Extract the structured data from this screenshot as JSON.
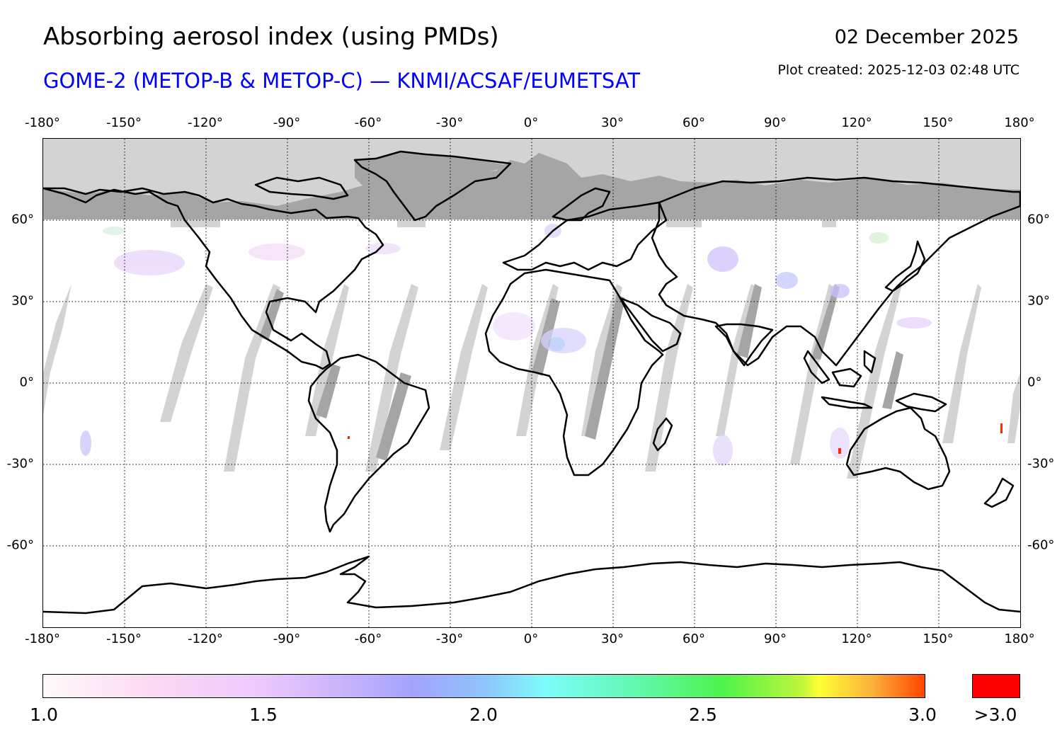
{
  "header": {
    "title": "Absorbing aerosol index (using PMDs)",
    "subtitle": "GOME-2 (METOP-B & METOP-C) — KNMI/ACSAF/EUMETSAT",
    "date": "02 December 2025",
    "plot_created": "Plot created: 2025-12-03 02:48 UTC"
  },
  "map": {
    "projection": "equirectangular",
    "lon_range": [
      -180,
      180
    ],
    "lat_range": [
      -90,
      90
    ],
    "lon_ticks": [
      "-180°",
      "-150°",
      "-120°",
      "-90°",
      "-60°",
      "-30°",
      "0°",
      "30°",
      "60°",
      "90°",
      "120°",
      "150°",
      "180°"
    ],
    "lat_ticks": [
      "60°",
      "30°",
      "0°",
      "-30°",
      "-60°"
    ],
    "no_data_color": "#d3d3d3",
    "land_no_data_color": "#a5a5a5",
    "polar_night_lat": 60
  },
  "colorbar": {
    "labels": [
      "1.0",
      "1.5",
      "2.0",
      "2.5",
      "3.0"
    ],
    "over_label": ">3.0",
    "over_color": "#ff0000",
    "range": [
      1.0,
      3.0
    ]
  }
}
